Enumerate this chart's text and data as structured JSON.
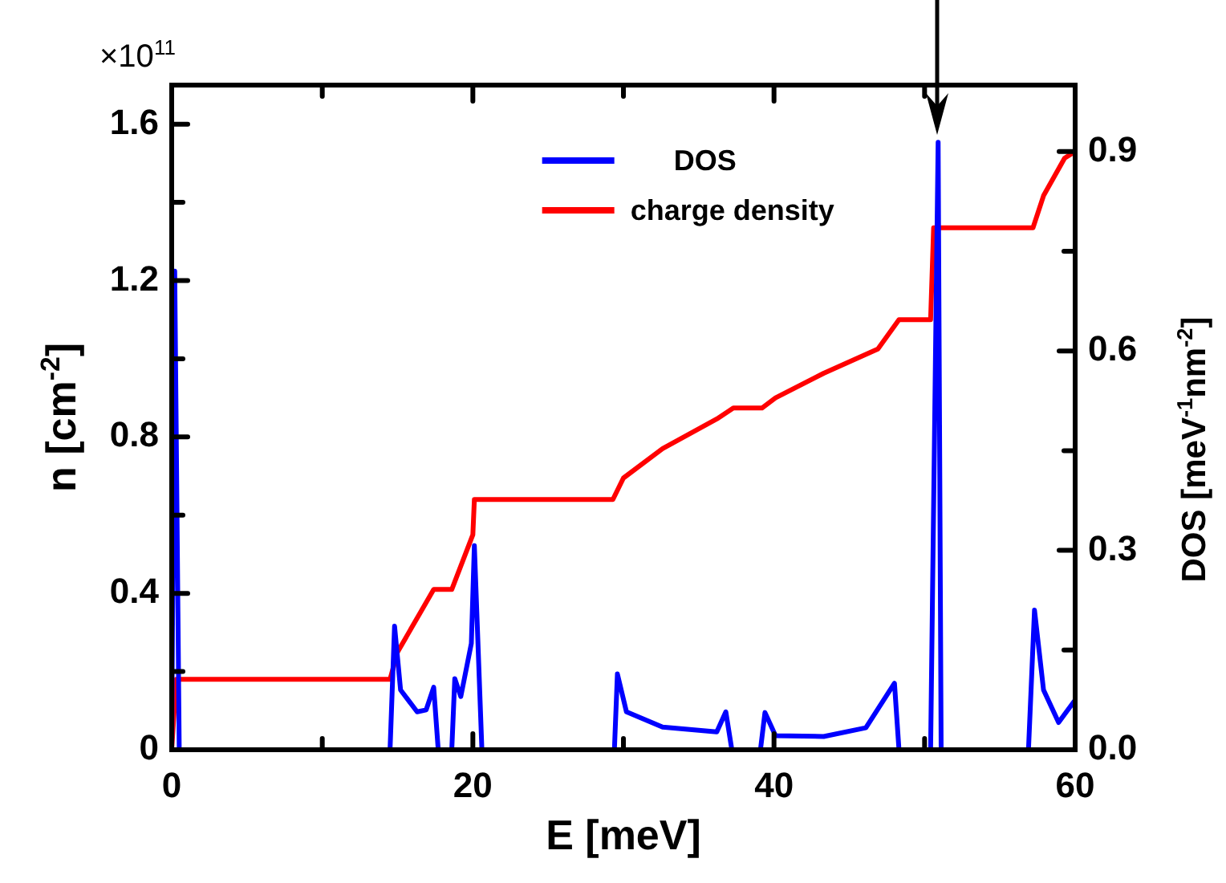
{
  "chart_data": {
    "type": "line",
    "xlabel": "E [meV]",
    "ylabel": "n [cm$^{-2}$]",
    "y2label": "DOS [meV$^{-1}$nm$^{-2}$]",
    "annotations": [
      "×10$^{11}$"
    ],
    "xlim": [
      0,
      60
    ],
    "xticks": [
      0,
      {
        "value": 10,
        "label": null
      },
      20,
      {
        "value": 30,
        "label": null
      },
      40,
      {
        "value": 50,
        "label": null
      },
      60
    ],
    "ylim": [
      0,
      1.7
    ],
    "yticks": [
      0,
      {
        "value": 0.2,
        "label": null
      },
      0.4,
      {
        "value": 0.6,
        "label": null
      },
      0.8,
      {
        "value": 1.0,
        "label": null
      },
      1.2,
      {
        "value": 1.4,
        "label": null
      },
      1.6
    ],
    "y2lim": [
      0,
      1.0
    ],
    "y2ticks": [
      {
        "value": 0,
        "label": "0.0"
      },
      {
        "value": 0.15,
        "label": null
      },
      0.3,
      {
        "value": 0.45,
        "label": null
      },
      0.6,
      {
        "value": 0.75,
        "label": null
      },
      0.9
    ],
    "grid": false,
    "legend": "top",
    "marker": "none",
    "line_style": "solid",
    "series": [
      {
        "name": "DOS",
        "color": "#0000ff",
        "axis": "y2",
        "x": [
          0,
          0.2,
          0.5,
          14.5,
          14.8,
          15.2,
          16.3,
          16.9,
          17.4,
          17.7,
          18.6,
          18.8,
          19.2,
          19.9,
          20.1,
          20.6,
          29.4,
          29.6,
          30.2,
          32.6,
          36.2,
          36.8,
          37.2,
          39.1,
          39.4,
          40.1,
          43.3,
          46.1,
          48.0,
          48.3,
          50.4,
          50.9,
          51.1,
          56.9,
          57.3,
          57.9,
          58.9,
          60
        ],
        "values": [
          0,
          0.72,
          0,
          0,
          0.186,
          0.09,
          0.057,
          0.06,
          0.094,
          0,
          0,
          0.107,
          0.08,
          0.16,
          0.307,
          0,
          0,
          0.114,
          0.057,
          0.034,
          0.027,
          0.057,
          0,
          0,
          0.056,
          0.021,
          0.02,
          0.033,
          0.1,
          0,
          0,
          0.914,
          0,
          0,
          0.21,
          0.09,
          0.041,
          0.075
        ]
      },
      {
        "name": "charge density",
        "color": "#ff0000",
        "x": [
          0,
          0.3,
          14.5,
          15.0,
          17.4,
          18.6,
          20.0,
          20.1,
          29.3,
          30.0,
          32.6,
          36.2,
          37.3,
          39.2,
          40.1,
          43.3,
          46.9,
          48.3,
          50.4,
          50.6,
          57.2,
          57.9,
          59.3,
          60
        ],
        "values": [
          0,
          0.18,
          0.18,
          0.25,
          0.41,
          0.41,
          0.55,
          0.64,
          0.64,
          0.695,
          0.77,
          0.846,
          0.874,
          0.874,
          0.9,
          0.963,
          1.025,
          1.1,
          1.1,
          1.335,
          1.335,
          1.417,
          1.513,
          1.53
        ]
      }
    ]
  }
}
